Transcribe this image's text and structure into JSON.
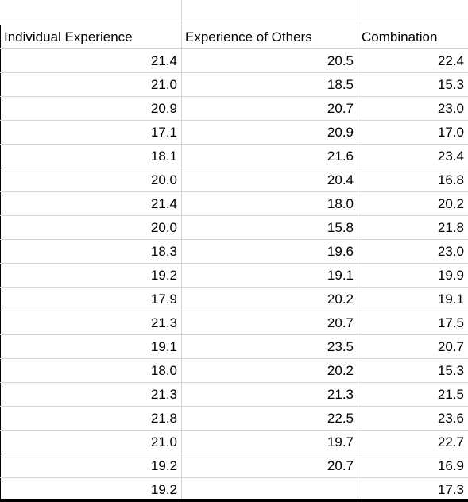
{
  "table": {
    "columns": [
      "Individual Experience",
      "Experience of Others",
      "Combination"
    ],
    "rows": [
      [
        "21.4",
        "20.5",
        "22.4"
      ],
      [
        "21.0",
        "18.5",
        "15.3"
      ],
      [
        "20.9",
        "20.7",
        "23.0"
      ],
      [
        "17.1",
        "20.9",
        "17.0"
      ],
      [
        "18.1",
        "21.6",
        "23.4"
      ],
      [
        "20.0",
        "20.4",
        "16.8"
      ],
      [
        "21.4",
        "18.0",
        "20.2"
      ],
      [
        "20.0",
        "15.8",
        "21.8"
      ],
      [
        "18.3",
        "19.6",
        "23.0"
      ],
      [
        "19.2",
        "19.1",
        "19.9"
      ],
      [
        "17.9",
        "20.2",
        "19.1"
      ],
      [
        "21.3",
        "20.7",
        "17.5"
      ],
      [
        "19.1",
        "23.5",
        "20.7"
      ],
      [
        "18.0",
        "20.2",
        "15.3"
      ],
      [
        "21.3",
        "21.3",
        "21.5"
      ],
      [
        "21.8",
        "22.5",
        "23.6"
      ],
      [
        "21.0",
        "19.7",
        "22.7"
      ],
      [
        "19.2",
        "20.7",
        "16.9"
      ],
      [
        "19.2",
        "",
        "17.3"
      ]
    ]
  }
}
